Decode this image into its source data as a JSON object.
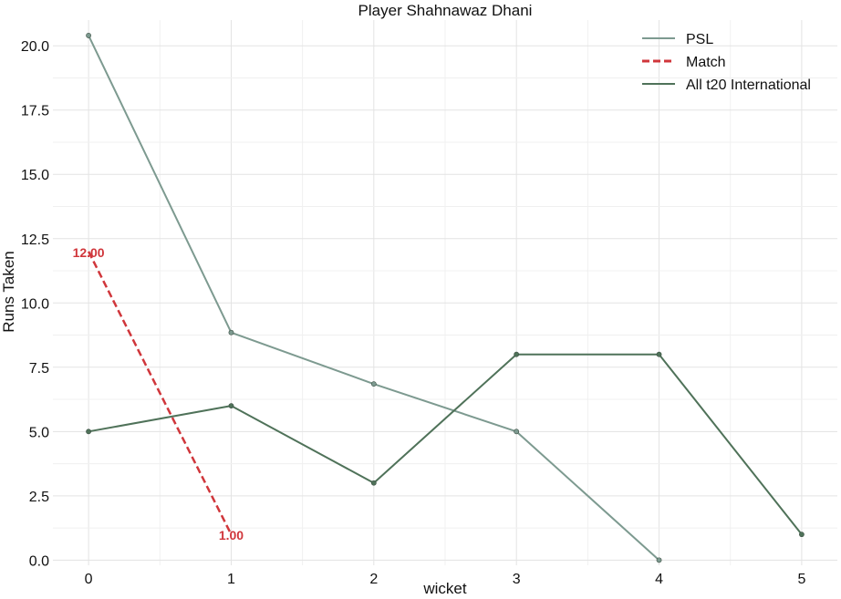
{
  "chart_data": {
    "type": "line",
    "title": "Player Shahnawaz Dhani",
    "xlabel": "wicket",
    "ylabel": "Runs Taken",
    "xlim": [
      -0.25,
      5.25
    ],
    "ylim": [
      -0.2,
      21.0
    ],
    "xticks": [
      0,
      1,
      2,
      3,
      4,
      5
    ],
    "xtick_labels": [
      "0",
      "1",
      "2",
      "3",
      "4",
      "5"
    ],
    "yticks": [
      0,
      2.5,
      5,
      7.5,
      10,
      12.5,
      15,
      17.5,
      20
    ],
    "ytick_labels": [
      "0.0",
      "2.5",
      "5.0",
      "7.5",
      "10.0",
      "12.5",
      "15.0",
      "17.5",
      "20.0"
    ],
    "grid": true,
    "legend_position": "top-right",
    "series": [
      {
        "name": "PSL",
        "x": [
          0,
          1,
          2,
          3,
          4
        ],
        "y": [
          20.4,
          8.85,
          6.85,
          5.0,
          0.0
        ],
        "color": "#7d9a90",
        "dash": "solid",
        "labels": []
      },
      {
        "name": "Match",
        "x": [
          0,
          1
        ],
        "y": [
          12.0,
          1.0
        ],
        "color": "#d0363b",
        "dash": "dashed",
        "labels": [
          "12.00",
          "1.00"
        ]
      },
      {
        "name": "All t20 International",
        "x": [
          0,
          1,
          2,
          3,
          4,
          5
        ],
        "y": [
          5.0,
          6.0,
          3.0,
          8.0,
          8.0,
          1.0
        ],
        "color": "#4f7259",
        "dash": "solid",
        "labels": []
      }
    ]
  }
}
